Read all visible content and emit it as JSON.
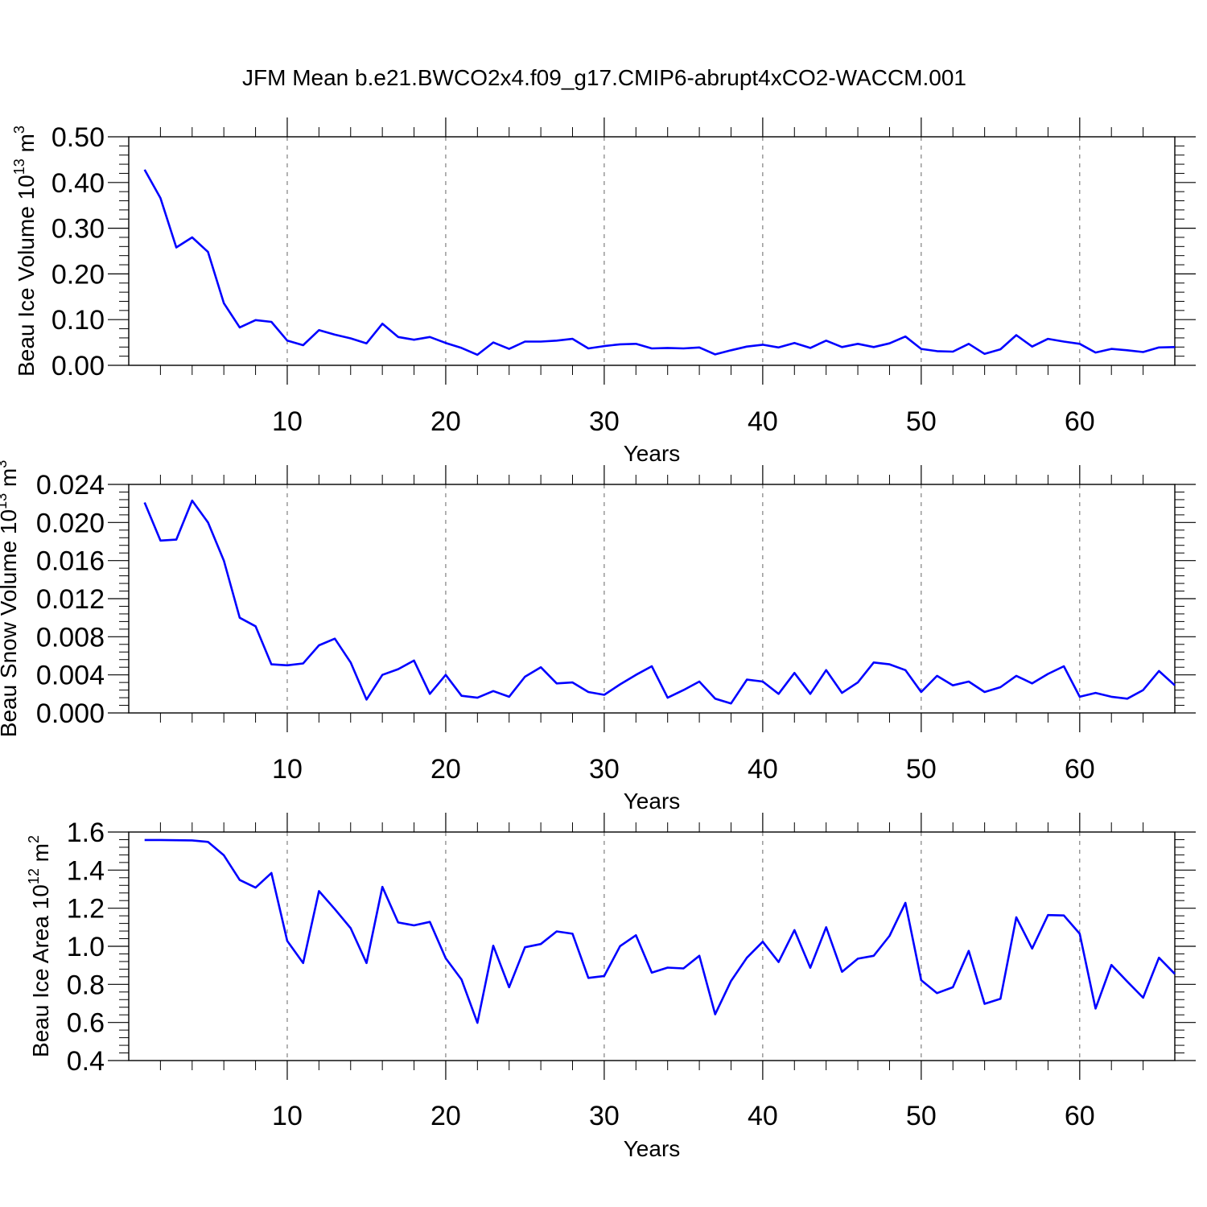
{
  "figure_title": "JFM Mean b.e21.BWCO2x4.f09_g17.CMIP6-abrupt4xCO2-WACCM.001",
  "line_color": "#0000ff",
  "chart_data": [
    {
      "type": "line",
      "title": "JFM Mean b.e21.BWCO2x4.f09_g17.CMIP6-abrupt4xCO2-WACCM.001",
      "xlabel": "Years",
      "ylabel": "Beau Ice Volume 10",
      "ylabel_sup": "13",
      "ylabel_unit": " m",
      "ylabel_unit_sup": "3",
      "xlim": [
        0,
        66
      ],
      "ylim": [
        0,
        0.5
      ],
      "xticks": [
        10,
        20,
        30,
        40,
        50,
        60
      ],
      "yticks": [
        "0.00",
        "0.10",
        "0.20",
        "0.30",
        "0.40",
        "0.50"
      ],
      "x": [
        1,
        2,
        3,
        4,
        5,
        6,
        7,
        8,
        9,
        10,
        11,
        12,
        13,
        14,
        15,
        16,
        17,
        18,
        19,
        20,
        21,
        22,
        23,
        24,
        25,
        26,
        27,
        28,
        29,
        30,
        31,
        32,
        33,
        34,
        35,
        36,
        37,
        38,
        39,
        40,
        41,
        42,
        43,
        44,
        45,
        46,
        47,
        48,
        49,
        50,
        51,
        52,
        53,
        54,
        55,
        56,
        57,
        58,
        59,
        60,
        61,
        62,
        63,
        64,
        65,
        66
      ],
      "values": [
        0.428,
        0.366,
        0.258,
        0.28,
        0.248,
        0.136,
        0.083,
        0.099,
        0.095,
        0.054,
        0.044,
        0.077,
        0.067,
        0.059,
        0.048,
        0.091,
        0.062,
        0.056,
        0.062,
        0.049,
        0.038,
        0.023,
        0.05,
        0.036,
        0.052,
        0.052,
        0.054,
        0.058,
        0.037,
        0.042,
        0.046,
        0.047,
        0.037,
        0.038,
        0.037,
        0.039,
        0.024,
        0.033,
        0.041,
        0.045,
        0.039,
        0.049,
        0.038,
        0.054,
        0.04,
        0.047,
        0.04,
        0.048,
        0.063,
        0.036,
        0.031,
        0.03,
        0.047,
        0.025,
        0.035,
        0.066,
        0.041,
        0.058,
        0.052,
        0.047,
        0.028,
        0.036,
        0.033,
        0.029,
        0.039,
        0.04
      ],
      "grid": "dashed vertical lines at x ticks"
    },
    {
      "type": "line",
      "xlabel": "Years",
      "ylabel": "Beau Snow Volume 10",
      "ylabel_sup": "13",
      "ylabel_unit": " m",
      "ylabel_unit_sup": "3",
      "xlim": [
        0,
        66
      ],
      "ylim": [
        0,
        0.024
      ],
      "xticks": [
        10,
        20,
        30,
        40,
        50,
        60
      ],
      "yticks": [
        "0.000",
        "0.004",
        "0.008",
        "0.012",
        "0.016",
        "0.020",
        "0.024"
      ],
      "x": [
        1,
        2,
        3,
        4,
        5,
        6,
        7,
        8,
        9,
        10,
        11,
        12,
        13,
        14,
        15,
        16,
        17,
        18,
        19,
        20,
        21,
        22,
        23,
        24,
        25,
        26,
        27,
        28,
        29,
        30,
        31,
        32,
        33,
        34,
        35,
        36,
        37,
        38,
        39,
        40,
        41,
        42,
        43,
        44,
        45,
        46,
        47,
        48,
        49,
        50,
        51,
        52,
        53,
        54,
        55,
        56,
        57,
        58,
        59,
        60,
        61,
        62,
        63,
        64,
        65,
        66
      ],
      "values": [
        0.0221,
        0.0181,
        0.0182,
        0.0223,
        0.02,
        0.016,
        0.01,
        0.0091,
        0.0051,
        0.005,
        0.0052,
        0.0071,
        0.0078,
        0.0053,
        0.0014,
        0.004,
        0.0046,
        0.0055,
        0.002,
        0.004,
        0.0018,
        0.0016,
        0.0023,
        0.0017,
        0.0038,
        0.0048,
        0.0031,
        0.0032,
        0.0022,
        0.0019,
        0.003,
        0.004,
        0.0049,
        0.0016,
        0.0024,
        0.0033,
        0.0015,
        0.001,
        0.0035,
        0.0033,
        0.002,
        0.0042,
        0.002,
        0.0045,
        0.0021,
        0.0032,
        0.0053,
        0.0051,
        0.0045,
        0.0022,
        0.0039,
        0.0029,
        0.0033,
        0.0022,
        0.0027,
        0.0039,
        0.0031,
        0.0041,
        0.0049,
        0.0017,
        0.0021,
        0.0017,
        0.0015,
        0.0024,
        0.0044,
        0.0029
      ],
      "grid": "dashed vertical lines at x ticks"
    },
    {
      "type": "line",
      "xlabel": "Years",
      "ylabel": "Beau Ice Area 10",
      "ylabel_sup": "12",
      "ylabel_unit": " m",
      "ylabel_unit_sup": "2",
      "xlim": [
        0,
        66
      ],
      "ylim": [
        0.4,
        1.6
      ],
      "xticks": [
        10,
        20,
        30,
        40,
        50,
        60
      ],
      "yticks": [
        "0.4",
        "0.6",
        "0.8",
        "1.0",
        "1.2",
        "1.4",
        "1.6"
      ],
      "x": [
        1,
        2,
        3,
        4,
        5,
        6,
        7,
        8,
        9,
        10,
        11,
        12,
        13,
        14,
        15,
        16,
        17,
        18,
        19,
        20,
        21,
        22,
        23,
        24,
        25,
        26,
        27,
        28,
        29,
        30,
        31,
        32,
        33,
        34,
        35,
        36,
        37,
        38,
        39,
        40,
        41,
        42,
        43,
        44,
        45,
        46,
        47,
        48,
        49,
        50,
        51,
        52,
        53,
        54,
        55,
        56,
        57,
        58,
        59,
        60,
        61,
        62,
        63,
        64,
        65,
        66
      ],
      "values": [
        1.558,
        1.558,
        1.557,
        1.556,
        1.548,
        1.478,
        1.348,
        1.308,
        1.385,
        1.028,
        0.912,
        1.29,
        1.195,
        1.095,
        0.912,
        1.312,
        1.125,
        1.11,
        1.128,
        0.937,
        0.825,
        0.598,
        1.003,
        0.785,
        0.995,
        1.012,
        1.078,
        1.066,
        0.834,
        0.844,
        1.001,
        1.058,
        0.862,
        0.888,
        0.884,
        0.95,
        0.643,
        0.818,
        0.94,
        1.024,
        0.917,
        1.085,
        0.887,
        1.1,
        0.866,
        0.935,
        0.95,
        1.055,
        1.228,
        0.822,
        0.754,
        0.785,
        0.976,
        0.698,
        0.724,
        1.152,
        0.988,
        1.164,
        1.162,
        1.066,
        0.673,
        0.902,
        0.815,
        0.73,
        0.94,
        0.855
      ],
      "grid": "dashed vertical lines at x ticks"
    }
  ]
}
